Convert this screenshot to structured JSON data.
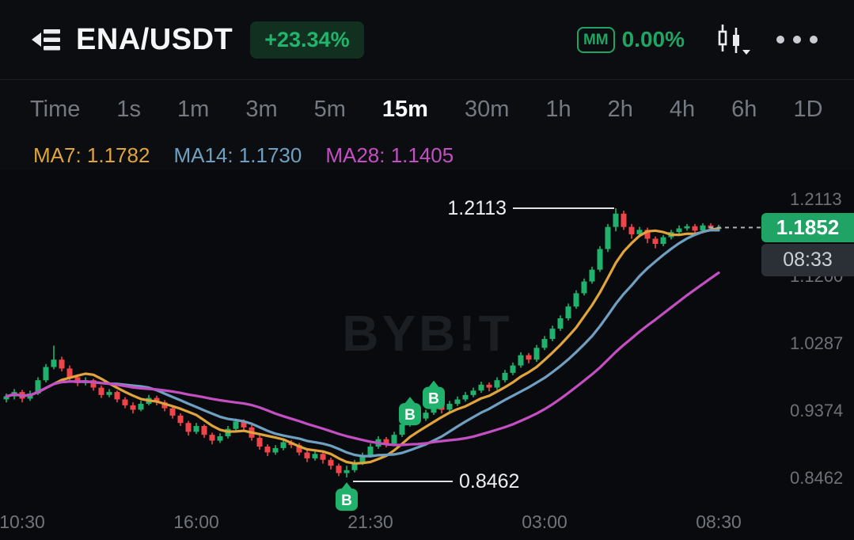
{
  "header": {
    "symbol": "ENA/USDT",
    "change": "+23.34%",
    "mm_label": "MM",
    "mm_value": "0.00%"
  },
  "timeframes": [
    {
      "label": "Time",
      "active": false
    },
    {
      "label": "1s",
      "active": false
    },
    {
      "label": "1m",
      "active": false
    },
    {
      "label": "3m",
      "active": false
    },
    {
      "label": "5m",
      "active": false
    },
    {
      "label": "15m",
      "active": true
    },
    {
      "label": "30m",
      "active": false
    },
    {
      "label": "1h",
      "active": false
    },
    {
      "label": "2h",
      "active": false
    },
    {
      "label": "4h",
      "active": false
    },
    {
      "label": "6h",
      "active": false
    },
    {
      "label": "1D",
      "active": false
    }
  ],
  "indicators": [
    {
      "label": "MA7: 1.1782",
      "color": "#e0a43c"
    },
    {
      "label": "MA14: 1.1730",
      "color": "#6fa0c2"
    },
    {
      "label": "MA28: 1.1405",
      "color": "#c44fc2"
    }
  ],
  "icons": {
    "left": "market-list",
    "chart_style": "candlestick",
    "more": "ellipsis"
  },
  "chart_data": {
    "type": "candlestick",
    "interval": "15m",
    "up_color": "#20b26c",
    "down_color": "#ef454a",
    "watermark": "BYB!T",
    "ylim": [
      0.7613,
      1.2629
    ],
    "ma": [
      {
        "period": 7,
        "color": "#e0a43c"
      },
      {
        "period": 14,
        "color": "#6fa0c2"
      },
      {
        "period": 28,
        "color": "#c44fc2"
      }
    ],
    "y_axis_labels": [
      {
        "text": "1.2113",
        "price": 1.2113
      },
      {
        "text": "1.1200",
        "price": 1.12
      },
      {
        "text": "1.0287",
        "price": 1.0287
      },
      {
        "text": "0.9374",
        "price": 0.9374
      },
      {
        "text": "0.8462",
        "price": 0.8462
      }
    ],
    "x_axis_labels": [
      {
        "text": "10:30",
        "index": 2
      },
      {
        "text": "16:00",
        "index": 24
      },
      {
        "text": "21:30",
        "index": 46
      },
      {
        "text": "03:00",
        "index": 68
      },
      {
        "text": "08:30",
        "index": 90
      }
    ],
    "annotations": {
      "high": {
        "text": "1.2113",
        "price": 1.2113,
        "index": 77
      },
      "low": {
        "text": "0.8462",
        "price": 0.8462,
        "index": 43
      }
    },
    "buy_markers": [
      {
        "index": 43,
        "price": 0.816,
        "label": "B"
      },
      {
        "index": 51,
        "price": 0.932,
        "label": "B"
      },
      {
        "index": 54,
        "price": 0.954,
        "label": "B"
      }
    ],
    "last_price": {
      "text": "1.1852",
      "value": 1.1852,
      "time": "08:33"
    },
    "candles": [
      [
        0.952,
        0.96,
        0.948,
        0.956
      ],
      [
        0.956,
        0.966,
        0.952,
        0.962
      ],
      [
        0.962,
        0.965,
        0.948,
        0.953
      ],
      [
        0.953,
        0.964,
        0.95,
        0.96
      ],
      [
        0.96,
        0.982,
        0.958,
        0.978
      ],
      [
        0.978,
        1.0,
        0.975,
        0.996
      ],
      [
        0.996,
        1.025,
        0.993,
        1.006
      ],
      [
        1.006,
        1.01,
        0.99,
        0.994
      ],
      [
        0.994,
        0.998,
        0.978,
        0.982
      ],
      [
        0.982,
        0.986,
        0.97,
        0.974
      ],
      [
        0.974,
        0.982,
        0.971,
        0.978
      ],
      [
        0.978,
        0.98,
        0.964,
        0.968
      ],
      [
        0.968,
        0.971,
        0.954,
        0.958
      ],
      [
        0.958,
        0.966,
        0.955,
        0.962
      ],
      [
        0.962,
        0.964,
        0.948,
        0.952
      ],
      [
        0.952,
        0.955,
        0.94,
        0.944
      ],
      [
        0.944,
        0.948,
        0.933,
        0.938
      ],
      [
        0.938,
        0.95,
        0.936,
        0.946
      ],
      [
        0.946,
        0.958,
        0.944,
        0.954
      ],
      [
        0.954,
        0.957,
        0.944,
        0.948
      ],
      [
        0.948,
        0.951,
        0.936,
        0.94
      ],
      [
        0.94,
        0.943,
        0.926,
        0.93
      ],
      [
        0.93,
        0.933,
        0.916,
        0.92
      ],
      [
        0.92,
        0.923,
        0.903,
        0.908
      ],
      [
        0.908,
        0.92,
        0.905,
        0.916
      ],
      [
        0.916,
        0.918,
        0.9,
        0.904
      ],
      [
        0.904,
        0.907,
        0.891,
        0.896
      ],
      [
        0.896,
        0.906,
        0.893,
        0.902
      ],
      [
        0.902,
        0.916,
        0.899,
        0.912
      ],
      [
        0.912,
        0.926,
        0.909,
        0.922
      ],
      [
        0.922,
        0.925,
        0.91,
        0.914
      ],
      [
        0.914,
        0.917,
        0.896,
        0.9
      ],
      [
        0.9,
        0.903,
        0.884,
        0.888
      ],
      [
        0.888,
        0.891,
        0.875,
        0.88
      ],
      [
        0.88,
        0.89,
        0.877,
        0.886
      ],
      [
        0.886,
        0.898,
        0.883,
        0.894
      ],
      [
        0.894,
        0.897,
        0.886,
        0.89
      ],
      [
        0.89,
        0.893,
        0.876,
        0.88
      ],
      [
        0.88,
        0.883,
        0.867,
        0.872
      ],
      [
        0.872,
        0.882,
        0.869,
        0.878
      ],
      [
        0.878,
        0.881,
        0.865,
        0.87
      ],
      [
        0.87,
        0.873,
        0.857,
        0.862
      ],
      [
        0.862,
        0.865,
        0.848,
        0.852
      ],
      [
        0.852,
        0.862,
        0.8462,
        0.856
      ],
      [
        0.856,
        0.87,
        0.853,
        0.866
      ],
      [
        0.866,
        0.88,
        0.863,
        0.876
      ],
      [
        0.876,
        0.892,
        0.873,
        0.888
      ],
      [
        0.888,
        0.902,
        0.885,
        0.898
      ],
      [
        0.898,
        0.901,
        0.887,
        0.892
      ],
      [
        0.892,
        0.908,
        0.889,
        0.904
      ],
      [
        0.904,
        0.922,
        0.901,
        0.918
      ],
      [
        0.918,
        0.936,
        0.915,
        0.932
      ],
      [
        0.932,
        0.935,
        0.921,
        0.926
      ],
      [
        0.926,
        0.938,
        0.923,
        0.934
      ],
      [
        0.934,
        0.948,
        0.931,
        0.944
      ],
      [
        0.944,
        0.947,
        0.933,
        0.938
      ],
      [
        0.938,
        0.95,
        0.935,
        0.946
      ],
      [
        0.946,
        0.956,
        0.943,
        0.952
      ],
      [
        0.952,
        0.962,
        0.949,
        0.958
      ],
      [
        0.958,
        0.968,
        0.955,
        0.964
      ],
      [
        0.964,
        0.976,
        0.961,
        0.972
      ],
      [
        0.972,
        0.975,
        0.963,
        0.968
      ],
      [
        0.968,
        0.982,
        0.965,
        0.978
      ],
      [
        0.978,
        0.992,
        0.975,
        0.988
      ],
      [
        0.988,
        1.002,
        0.985,
        0.998
      ],
      [
        0.998,
        1.016,
        0.995,
        1.012
      ],
      [
        1.012,
        1.015,
        1.001,
        1.006
      ],
      [
        1.006,
        1.026,
        1.003,
        1.022
      ],
      [
        1.022,
        1.038,
        1.019,
        1.034
      ],
      [
        1.034,
        1.052,
        1.031,
        1.048
      ],
      [
        1.048,
        1.066,
        1.045,
        1.062
      ],
      [
        1.062,
        1.082,
        1.059,
        1.078
      ],
      [
        1.078,
        1.1,
        1.075,
        1.096
      ],
      [
        1.096,
        1.116,
        1.093,
        1.112
      ],
      [
        1.112,
        1.132,
        1.109,
        1.128
      ],
      [
        1.128,
        1.16,
        1.125,
        1.156
      ],
      [
        1.156,
        1.19,
        1.152,
        1.186
      ],
      [
        1.186,
        1.2113,
        1.18,
        1.204
      ],
      [
        1.204,
        1.208,
        1.182,
        1.186
      ],
      [
        1.186,
        1.19,
        1.17,
        1.176
      ],
      [
        1.176,
        1.186,
        1.172,
        1.182
      ],
      [
        1.182,
        1.185,
        1.164,
        1.17
      ],
      [
        1.17,
        1.173,
        1.157,
        1.163
      ],
      [
        1.163,
        1.175,
        1.16,
        1.172
      ],
      [
        1.172,
        1.182,
        1.169,
        1.179
      ],
      [
        1.179,
        1.188,
        1.176,
        1.184
      ],
      [
        1.184,
        1.19,
        1.181,
        1.187
      ],
      [
        1.187,
        1.19,
        1.177,
        1.181
      ],
      [
        1.181,
        1.191,
        1.178,
        1.188
      ],
      [
        1.188,
        1.191,
        1.18,
        1.184
      ],
      [
        1.184,
        1.189,
        1.181,
        1.1852
      ]
    ]
  }
}
